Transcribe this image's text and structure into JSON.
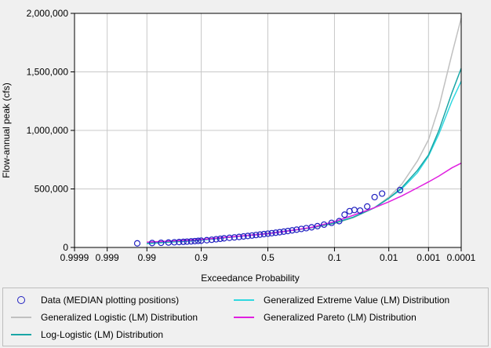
{
  "chart_data": {
    "type": "scatter",
    "xlabel": "Exceedance Probability",
    "ylabel": "Flow-annual peak (cfs)",
    "x_scale": "normal-probability",
    "x_ticks": [
      0.9999,
      0.999,
      0.99,
      0.9,
      0.5,
      0.1,
      0.01,
      0.001,
      0.0001
    ],
    "x_tick_labels": [
      "0.9999",
      "0.999",
      "0.99",
      "0.9",
      "0.5",
      "0.1",
      "0.01",
      "0.001",
      "0.0001"
    ],
    "xlim": [
      0.9999,
      0.0001
    ],
    "ylim": [
      0,
      2000000
    ],
    "y_ticks": [
      0,
      500000,
      1000000,
      1500000,
      2000000
    ],
    "y_tick_labels": [
      "0",
      "500,000",
      "1,000,000",
      "1,500,000",
      "2,000,000"
    ],
    "grid": true,
    "series": [
      {
        "name": "Data (MEDIAN plotting positions)",
        "kind": "points",
        "color": "#2020c0",
        "points": [
          [
            0.994,
            35000
          ],
          [
            0.987,
            38000
          ],
          [
            0.98,
            40000
          ],
          [
            0.972,
            42000
          ],
          [
            0.964,
            44000
          ],
          [
            0.956,
            46000
          ],
          [
            0.948,
            48000
          ],
          [
            0.94,
            50000
          ],
          [
            0.93,
            52000
          ],
          [
            0.92,
            54000
          ],
          [
            0.91,
            56000
          ],
          [
            0.9,
            58000
          ],
          [
            0.88,
            62000
          ],
          [
            0.86,
            66000
          ],
          [
            0.84,
            70000
          ],
          [
            0.82,
            74000
          ],
          [
            0.8,
            78000
          ],
          [
            0.77,
            82000
          ],
          [
            0.74,
            86000
          ],
          [
            0.71,
            90000
          ],
          [
            0.68,
            94000
          ],
          [
            0.65,
            98000
          ],
          [
            0.62,
            102000
          ],
          [
            0.59,
            106000
          ],
          [
            0.56,
            110000
          ],
          [
            0.53,
            114000
          ],
          [
            0.5,
            118000
          ],
          [
            0.47,
            122000
          ],
          [
            0.44,
            126000
          ],
          [
            0.41,
            130000
          ],
          [
            0.38,
            135000
          ],
          [
            0.35,
            140000
          ],
          [
            0.32,
            146000
          ],
          [
            0.29,
            152000
          ],
          [
            0.26,
            158000
          ],
          [
            0.23,
            165000
          ],
          [
            0.2,
            172000
          ],
          [
            0.17,
            182000
          ],
          [
            0.14,
            195000
          ],
          [
            0.11,
            210000
          ],
          [
            0.085,
            225000
          ],
          [
            0.07,
            280000
          ],
          [
            0.058,
            310000
          ],
          [
            0.048,
            320000
          ],
          [
            0.038,
            315000
          ],
          [
            0.028,
            350000
          ],
          [
            0.02,
            430000
          ],
          [
            0.014,
            460000
          ],
          [
            0.0055,
            490000
          ]
        ]
      },
      {
        "name": "Generalized Extreme Value (LM) Distribution",
        "kind": "line",
        "color": "#30d8e0",
        "points": [
          [
            0.99,
            33000
          ],
          [
            0.9,
            62000
          ],
          [
            0.5,
            120000
          ],
          [
            0.3,
            150000
          ],
          [
            0.2,
            170000
          ],
          [
            0.1,
            210000
          ],
          [
            0.05,
            260000
          ],
          [
            0.02,
            340000
          ],
          [
            0.01,
            420000
          ],
          [
            0.005,
            500000
          ],
          [
            0.002,
            640000
          ],
          [
            0.001,
            780000
          ],
          [
            0.0005,
            970000
          ],
          [
            0.0002,
            1250000
          ],
          [
            0.0001,
            1420000
          ]
        ]
      },
      {
        "name": "Generalized Logistic (LM) Distribution",
        "kind": "line",
        "color": "#c0c0c0",
        "points": [
          [
            0.99,
            38000
          ],
          [
            0.9,
            65000
          ],
          [
            0.5,
            120000
          ],
          [
            0.3,
            148000
          ],
          [
            0.2,
            168000
          ],
          [
            0.1,
            205000
          ],
          [
            0.05,
            255000
          ],
          [
            0.02,
            340000
          ],
          [
            0.01,
            430000
          ],
          [
            0.005,
            540000
          ],
          [
            0.002,
            740000
          ],
          [
            0.001,
            920000
          ],
          [
            0.0005,
            1200000
          ],
          [
            0.0002,
            1650000
          ],
          [
            0.0001,
            1960000
          ]
        ]
      },
      {
        "name": "Generalized Pareto (LM) Distribution",
        "kind": "line",
        "color": "#e020e0",
        "points": [
          [
            0.99,
            45000
          ],
          [
            0.9,
            68000
          ],
          [
            0.5,
            118000
          ],
          [
            0.3,
            150000
          ],
          [
            0.2,
            172000
          ],
          [
            0.1,
            220000
          ],
          [
            0.05,
            275000
          ],
          [
            0.02,
            340000
          ],
          [
            0.01,
            390000
          ],
          [
            0.005,
            440000
          ],
          [
            0.002,
            510000
          ],
          [
            0.001,
            560000
          ],
          [
            0.0005,
            610000
          ],
          [
            0.0002,
            680000
          ],
          [
            0.0001,
            720000
          ]
        ]
      },
      {
        "name": "Log-Logistic (LM) Distribution",
        "kind": "line",
        "color": "#1aa6a6",
        "points": [
          [
            0.99,
            36000
          ],
          [
            0.9,
            63000
          ],
          [
            0.5,
            119000
          ],
          [
            0.3,
            149000
          ],
          [
            0.2,
            169000
          ],
          [
            0.1,
            208000
          ],
          [
            0.05,
            258000
          ],
          [
            0.02,
            340000
          ],
          [
            0.01,
            420000
          ],
          [
            0.005,
            510000
          ],
          [
            0.002,
            660000
          ],
          [
            0.001,
            790000
          ],
          [
            0.0005,
            1000000
          ],
          [
            0.0002,
            1320000
          ],
          [
            0.0001,
            1530000
          ]
        ]
      }
    ],
    "legend": [
      {
        "label": "Data (MEDIAN plotting positions)",
        "color": "#2020c0",
        "kind": "marker"
      },
      {
        "label": "Generalized Extreme Value (LM) Distribution",
        "color": "#30d8e0",
        "kind": "line"
      },
      {
        "label": "Generalized Logistic (LM) Distribution",
        "color": "#c0c0c0",
        "kind": "line"
      },
      {
        "label": "Generalized Pareto (LM) Distribution",
        "color": "#e020e0",
        "kind": "line"
      },
      {
        "label": "Log-Logistic (LM) Distribution",
        "color": "#1aa6a6",
        "kind": "line"
      }
    ]
  }
}
